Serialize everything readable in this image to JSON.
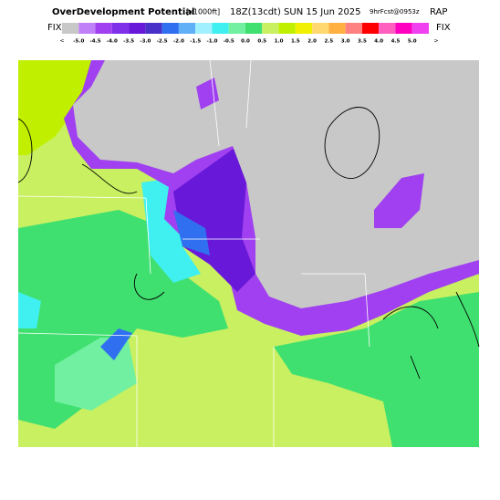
{
  "header": {
    "title": "OverDevelopment Potential",
    "unit": "[x1000ft]",
    "time": "18Z(13cdt) SUN 15 Jun 2025",
    "forecast": "9hrFcst@0953z",
    "model": "RAP"
  },
  "legend": {
    "left": "FIX",
    "right": "FIX",
    "under": "<",
    "over": ">",
    "labels": [
      "-5.0",
      "-4.5",
      "-4.0",
      "-3.5",
      "-3.0",
      "-2.5",
      "-2.0",
      "-1.5",
      "-1.0",
      "-0.5",
      "0.0",
      "0.5",
      "1.0",
      "1.5",
      "2.0",
      "2.5",
      "3.0",
      "3.5",
      "4.0",
      "4.5",
      "5.0"
    ],
    "colors": [
      "#c8c8c8",
      "#c080f8",
      "#a040f0",
      "#8030e8",
      "#6818d8",
      "#4830c8",
      "#3070f0",
      "#60b0f8",
      "#a0f0ff",
      "#40f0f0",
      "#70f0a0",
      "#40e070",
      "#c8f060",
      "#c0f000",
      "#f0f000",
      "#ffd870",
      "#ffb040",
      "#ff8080",
      "#ff0000",
      "#ff60c0",
      "#ff00c0",
      "#f040f0"
    ]
  }
}
